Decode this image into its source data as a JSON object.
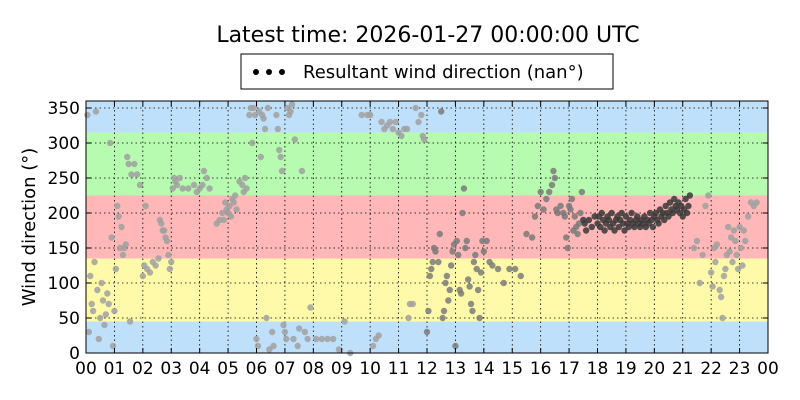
{
  "chart_data": {
    "type": "scatter",
    "title": "Latest time: 2026-01-27 00:00:00 UTC",
    "ylabel": "Wind direction (°)",
    "xlabel": "",
    "legend": {
      "label": "Resultant wind direction (nan°)",
      "placement": "top-center"
    },
    "xlim": [
      0,
      24
    ],
    "ylim": [
      0,
      360
    ],
    "xticks": [
      "00",
      "01",
      "02",
      "03",
      "04",
      "05",
      "06",
      "07",
      "08",
      "09",
      "10",
      "11",
      "12",
      "13",
      "14",
      "15",
      "16",
      "17",
      "18",
      "19",
      "20",
      "21",
      "22",
      "23",
      "00"
    ],
    "yticks": [
      0,
      50,
      100,
      150,
      200,
      250,
      300,
      350
    ],
    "grid": true,
    "bands": [
      {
        "from": 0,
        "to": 45,
        "color": "#bfe0fb"
      },
      {
        "from": 45,
        "to": 135,
        "color": "#fffaaa"
      },
      {
        "from": 135,
        "to": 225,
        "color": "#ffb7b7"
      },
      {
        "from": 225,
        "to": 315,
        "color": "#b7fbb0"
      },
      {
        "from": 315,
        "to": 360,
        "color": "#bfe0fb"
      }
    ],
    "point_colors": {
      "early": "#a0a0a0",
      "mid": "#7a7a7a",
      "late": "#383838"
    },
    "points": [
      [
        0.05,
        340
      ],
      [
        0.1,
        30
      ],
      [
        0.15,
        110
      ],
      [
        0.2,
        70
      ],
      [
        0.25,
        60
      ],
      [
        0.3,
        130
      ],
      [
        0.35,
        345
      ],
      [
        0.4,
        90
      ],
      [
        0.45,
        20
      ],
      [
        0.5,
        50
      ],
      [
        0.55,
        100
      ],
      [
        0.6,
        75
      ],
      [
        0.65,
        40
      ],
      [
        0.7,
        55
      ],
      [
        0.75,
        85
      ],
      [
        0.8,
        70
      ],
      [
        0.85,
        300
      ],
      [
        0.9,
        165
      ],
      [
        0.95,
        10
      ],
      [
        1.0,
        60
      ],
      [
        1.05,
        120
      ],
      [
        1.1,
        210
      ],
      [
        1.15,
        195
      ],
      [
        1.2,
        150
      ],
      [
        1.25,
        180
      ],
      [
        1.3,
        140
      ],
      [
        1.35,
        150
      ],
      [
        1.4,
        155
      ],
      [
        1.45,
        280
      ],
      [
        1.5,
        270
      ],
      [
        1.55,
        45
      ],
      [
        1.6,
        255
      ],
      [
        1.7,
        270
      ],
      [
        1.8,
        255
      ],
      [
        1.9,
        240
      ],
      [
        2.0,
        110
      ],
      [
        2.05,
        125
      ],
      [
        2.1,
        210
      ],
      [
        2.15,
        120
      ],
      [
        2.25,
        115
      ],
      [
        2.35,
        130
      ],
      [
        2.45,
        125
      ],
      [
        2.55,
        135
      ],
      [
        2.6,
        190
      ],
      [
        2.65,
        185
      ],
      [
        2.7,
        175
      ],
      [
        2.75,
        175
      ],
      [
        2.8,
        165
      ],
      [
        2.85,
        160
      ],
      [
        2.9,
        140
      ],
      [
        2.95,
        120
      ],
      [
        3.0,
        130
      ],
      [
        3.05,
        235
      ],
      [
        3.1,
        250
      ],
      [
        3.15,
        245
      ],
      [
        3.2,
        240
      ],
      [
        3.3,
        250
      ],
      [
        3.4,
        235
      ],
      [
        3.6,
        235
      ],
      [
        3.8,
        240
      ],
      [
        3.9,
        230
      ],
      [
        4.0,
        235
      ],
      [
        4.1,
        240
      ],
      [
        4.15,
        260
      ],
      [
        4.25,
        250
      ],
      [
        4.35,
        235
      ],
      [
        4.6,
        185
      ],
      [
        4.7,
        190
      ],
      [
        4.8,
        200
      ],
      [
        4.85,
        190
      ],
      [
        4.9,
        215
      ],
      [
        4.95,
        205
      ],
      [
        5.0,
        200
      ],
      [
        5.05,
        210
      ],
      [
        5.1,
        195
      ],
      [
        5.15,
        220
      ],
      [
        5.2,
        215
      ],
      [
        5.25,
        225
      ],
      [
        5.3,
        205
      ],
      [
        5.4,
        245
      ],
      [
        5.5,
        240
      ],
      [
        5.55,
        230
      ],
      [
        5.6,
        250
      ],
      [
        5.65,
        235
      ],
      [
        5.75,
        340
      ],
      [
        5.8,
        350
      ],
      [
        5.85,
        300
      ],
      [
        5.9,
        350
      ],
      [
        5.95,
        340
      ],
      [
        6.0,
        20
      ],
      [
        6.05,
        10
      ],
      [
        6.1,
        345
      ],
      [
        6.15,
        280
      ],
      [
        6.2,
        340
      ],
      [
        6.25,
        335
      ],
      [
        6.3,
        320
      ],
      [
        6.35,
        50
      ],
      [
        6.4,
        350
      ],
      [
        6.45,
        5
      ],
      [
        6.55,
        30
      ],
      [
        6.6,
        10
      ],
      [
        6.7,
        340
      ],
      [
        6.75,
        320
      ],
      [
        6.8,
        290
      ],
      [
        6.85,
        280
      ],
      [
        6.9,
        260
      ],
      [
        6.95,
        40
      ],
      [
        7.0,
        30
      ],
      [
        7.05,
        20
      ],
      [
        7.1,
        350
      ],
      [
        7.15,
        340
      ],
      [
        7.2,
        345
      ],
      [
        7.25,
        355
      ],
      [
        7.3,
        20
      ],
      [
        7.35,
        305
      ],
      [
        7.45,
        10
      ],
      [
        7.5,
        35
      ],
      [
        7.6,
        260
      ],
      [
        7.7,
        30
      ],
      [
        7.8,
        20
      ],
      [
        7.9,
        65
      ],
      [
        8.1,
        20
      ],
      [
        8.3,
        20
      ],
      [
        8.5,
        20
      ],
      [
        8.7,
        20
      ],
      [
        8.9,
        5
      ],
      [
        9.1,
        45
      ],
      [
        9.3,
        0
      ],
      [
        9.7,
        340
      ],
      [
        9.9,
        340
      ],
      [
        10.0,
        340
      ],
      [
        10.1,
        10
      ],
      [
        10.2,
        20
      ],
      [
        10.3,
        25
      ],
      [
        10.4,
        330
      ],
      [
        10.5,
        320
      ],
      [
        10.6,
        325
      ],
      [
        10.7,
        330
      ],
      [
        10.8,
        320
      ],
      [
        10.9,
        330
      ],
      [
        11.0,
        315
      ],
      [
        11.1,
        310
      ],
      [
        11.2,
        320
      ],
      [
        11.3,
        320
      ],
      [
        11.35,
        50
      ],
      [
        11.4,
        70
      ],
      [
        11.5,
        70
      ],
      [
        11.6,
        350
      ],
      [
        11.7,
        330
      ],
      [
        11.8,
        340
      ],
      [
        11.85,
        310
      ],
      [
        11.9,
        305
      ],
      [
        12.0,
        30
      ],
      [
        12.05,
        60
      ],
      [
        12.1,
        110
      ],
      [
        12.15,
        120
      ],
      [
        12.2,
        130
      ],
      [
        12.25,
        150
      ],
      [
        12.3,
        145
      ],
      [
        12.4,
        130
      ],
      [
        12.45,
        170
      ],
      [
        12.5,
        345
      ],
      [
        12.55,
        50
      ],
      [
        12.6,
        60
      ],
      [
        12.65,
        100
      ],
      [
        12.7,
        110
      ],
      [
        12.75,
        75
      ],
      [
        12.8,
        90
      ],
      [
        12.85,
        125
      ],
      [
        12.9,
        145
      ],
      [
        12.95,
        155
      ],
      [
        13.0,
        10
      ],
      [
        13.05,
        160
      ],
      [
        13.1,
        140
      ],
      [
        13.15,
        90
      ],
      [
        13.2,
        85
      ],
      [
        13.25,
        200
      ],
      [
        13.3,
        235
      ],
      [
        13.35,
        150
      ],
      [
        13.4,
        160
      ],
      [
        13.45,
        105
      ],
      [
        13.5,
        95
      ],
      [
        13.55,
        70
      ],
      [
        13.6,
        60
      ],
      [
        13.65,
        130
      ],
      [
        13.7,
        140
      ],
      [
        13.75,
        120
      ],
      [
        13.8,
        90
      ],
      [
        13.85,
        50
      ],
      [
        13.9,
        115
      ],
      [
        13.95,
        160
      ],
      [
        14.0,
        145
      ],
      [
        14.1,
        160
      ],
      [
        14.2,
        130
      ],
      [
        14.3,
        125
      ],
      [
        14.5,
        120
      ],
      [
        14.7,
        100
      ],
      [
        14.9,
        120
      ],
      [
        15.1,
        120
      ],
      [
        15.3,
        110
      ],
      [
        15.5,
        170
      ],
      [
        15.7,
        165
      ],
      [
        15.8,
        195
      ],
      [
        15.9,
        210
      ],
      [
        16.0,
        230
      ],
      [
        16.1,
        205
      ],
      [
        16.2,
        220
      ],
      [
        16.3,
        230
      ],
      [
        16.4,
        240
      ],
      [
        16.45,
        260
      ],
      [
        16.5,
        250
      ],
      [
        16.55,
        205
      ],
      [
        16.6,
        200
      ],
      [
        16.7,
        210
      ],
      [
        16.8,
        200
      ],
      [
        16.85,
        195
      ],
      [
        16.9,
        165
      ],
      [
        16.95,
        150
      ],
      [
        17.0,
        210
      ],
      [
        17.05,
        205
      ],
      [
        17.1,
        220
      ],
      [
        17.15,
        175
      ],
      [
        17.2,
        195
      ],
      [
        17.25,
        180
      ],
      [
        17.3,
        170
      ],
      [
        17.35,
        185
      ],
      [
        17.4,
        200
      ],
      [
        17.45,
        230
      ],
      [
        17.5,
        190
      ],
      [
        17.55,
        185
      ],
      [
        17.6,
        175
      ],
      [
        17.7,
        190
      ],
      [
        17.8,
        180
      ],
      [
        17.9,
        195
      ],
      [
        18.0,
        185
      ],
      [
        18.05,
        195
      ],
      [
        18.1,
        180
      ],
      [
        18.15,
        200
      ],
      [
        18.2,
        190
      ],
      [
        18.25,
        175
      ],
      [
        18.3,
        185
      ],
      [
        18.35,
        195
      ],
      [
        18.4,
        190
      ],
      [
        18.45,
        180
      ],
      [
        18.5,
        200
      ],
      [
        18.55,
        185
      ],
      [
        18.6,
        175
      ],
      [
        18.65,
        190
      ],
      [
        18.7,
        195
      ],
      [
        18.75,
        180
      ],
      [
        18.8,
        190
      ],
      [
        18.85,
        200
      ],
      [
        18.9,
        185
      ],
      [
        18.95,
        175
      ],
      [
        19.0,
        195
      ],
      [
        19.05,
        185
      ],
      [
        19.1,
        180
      ],
      [
        19.15,
        190
      ],
      [
        19.2,
        200
      ],
      [
        19.25,
        185
      ],
      [
        19.3,
        180
      ],
      [
        19.35,
        190
      ],
      [
        19.4,
        195
      ],
      [
        19.45,
        185
      ],
      [
        19.5,
        180
      ],
      [
        19.55,
        190
      ],
      [
        19.6,
        185
      ],
      [
        19.65,
        195
      ],
      [
        19.7,
        180
      ],
      [
        19.75,
        190
      ],
      [
        19.8,
        185
      ],
      [
        19.85,
        200
      ],
      [
        19.9,
        190
      ],
      [
        19.95,
        180
      ],
      [
        20.0,
        195
      ],
      [
        20.05,
        200
      ],
      [
        20.1,
        190
      ],
      [
        20.15,
        185
      ],
      [
        20.2,
        205
      ],
      [
        20.25,
        195
      ],
      [
        20.3,
        200
      ],
      [
        20.35,
        190
      ],
      [
        20.4,
        210
      ],
      [
        20.45,
        200
      ],
      [
        20.5,
        195
      ],
      [
        20.55,
        215
      ],
      [
        20.6,
        205
      ],
      [
        20.65,
        200
      ],
      [
        20.7,
        220
      ],
      [
        20.75,
        210
      ],
      [
        20.8,
        205
      ],
      [
        20.85,
        215
      ],
      [
        20.9,
        200
      ],
      [
        20.95,
        210
      ],
      [
        21.0,
        195
      ],
      [
        21.05,
        205
      ],
      [
        21.1,
        220
      ],
      [
        21.15,
        200
      ],
      [
        21.2,
        210
      ],
      [
        21.25,
        225
      ],
      [
        21.4,
        150
      ],
      [
        21.5,
        160
      ],
      [
        21.6,
        100
      ],
      [
        21.7,
        140
      ],
      [
        21.8,
        210
      ],
      [
        21.9,
        225
      ],
      [
        22.0,
        115
      ],
      [
        22.05,
        95
      ],
      [
        22.1,
        150
      ],
      [
        22.15,
        130
      ],
      [
        22.2,
        155
      ],
      [
        22.3,
        90
      ],
      [
        22.35,
        80
      ],
      [
        22.4,
        50
      ],
      [
        22.45,
        110
      ],
      [
        22.5,
        120
      ],
      [
        22.55,
        140
      ],
      [
        22.6,
        180
      ],
      [
        22.65,
        145
      ],
      [
        22.7,
        165
      ],
      [
        22.75,
        130
      ],
      [
        22.8,
        175
      ],
      [
        22.85,
        160
      ],
      [
        22.9,
        140
      ],
      [
        22.95,
        120
      ],
      [
        23.0,
        180
      ],
      [
        23.05,
        150
      ],
      [
        23.1,
        125
      ],
      [
        23.15,
        175
      ],
      [
        23.2,
        160
      ],
      [
        23.3,
        195
      ],
      [
        23.4,
        215
      ],
      [
        23.5,
        210
      ],
      [
        23.6,
        215
      ]
    ]
  }
}
